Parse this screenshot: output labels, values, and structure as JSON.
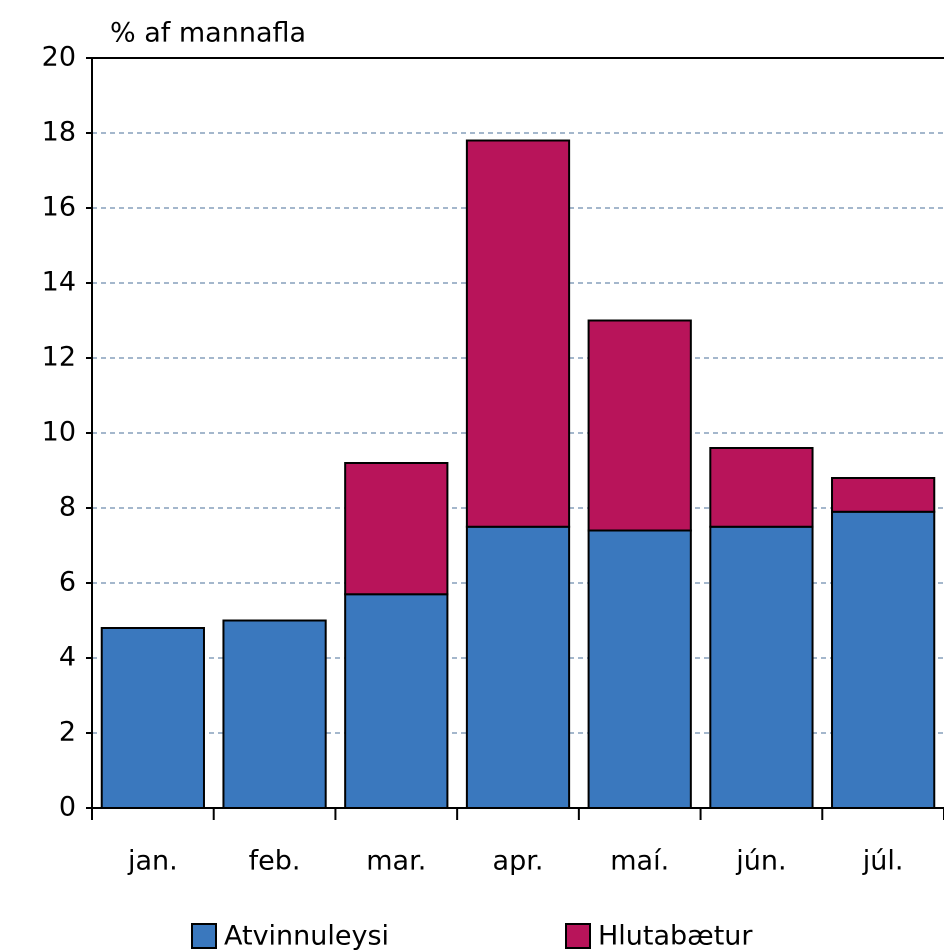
{
  "chart_data": {
    "type": "stacked-bar",
    "y_axis_label": "% af mannafla",
    "categories": [
      "jan.",
      "feb.",
      "mar.",
      "apr.",
      "maí.",
      "jún.",
      "júl."
    ],
    "series": [
      {
        "name": "Atvinnuleysi",
        "color": "#3a78be",
        "values": [
          4.8,
          5.0,
          5.7,
          7.5,
          7.4,
          7.5,
          7.9
        ]
      },
      {
        "name": "Hlutabætur",
        "color": "#b8145a",
        "values": [
          null,
          null,
          3.5,
          10.3,
          5.6,
          2.1,
          0.9
        ]
      }
    ],
    "ylim": [
      0,
      20
    ],
    "yticks": [
      0,
      2,
      4,
      6,
      8,
      10,
      12,
      14,
      16,
      18,
      20
    ],
    "grid": true
  }
}
